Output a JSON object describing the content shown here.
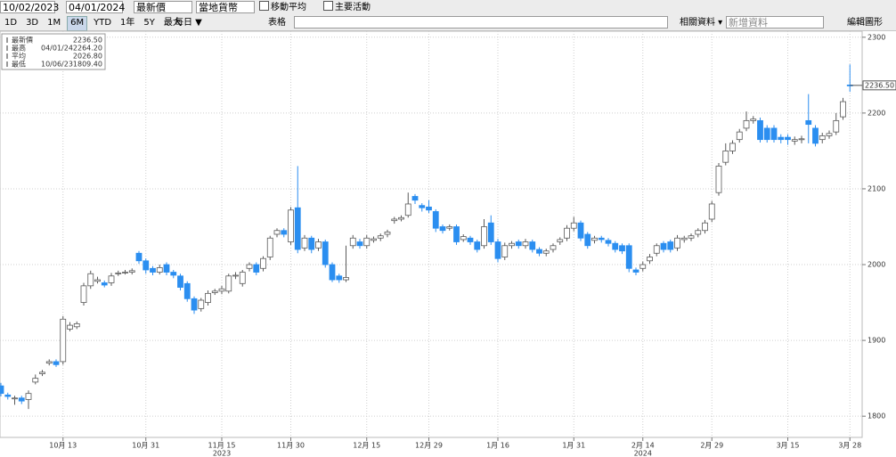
{
  "toolbar": {
    "start_date": "10/02/2023",
    "end_date": "04/01/2024",
    "price_field": "最新價",
    "currency": "當地貨幣",
    "moving_average": "移動平均",
    "key_events": "主要活動",
    "ranges": [
      "1D",
      "3D",
      "1M",
      "6M",
      "YTD",
      "1年",
      "5Y",
      "最大"
    ],
    "selected_range_index": 3,
    "frequency": "每日 ▼",
    "table": "表格",
    "related_data": "相關資料 ▾",
    "add_data": "新增資料",
    "edit_chart": "編輯圖形"
  },
  "chart_data": {
    "type": "candlestick",
    "categories": [
      null,
      null,
      null,
      null,
      null,
      null,
      null,
      null,
      null,
      "10月 13",
      null,
      null,
      null,
      null,
      null,
      null,
      null,
      null,
      null,
      null,
      null,
      "10月 31",
      null,
      null,
      null,
      null,
      null,
      null,
      null,
      null,
      null,
      null,
      "11月 15",
      null,
      null,
      null,
      null,
      null,
      null,
      null,
      null,
      null,
      "11月 30",
      null,
      null,
      null,
      null,
      null,
      null,
      null,
      null,
      null,
      null,
      "12月 15",
      null,
      null,
      null,
      null,
      null,
      null,
      null,
      null,
      "12月 29",
      null,
      null,
      null,
      null,
      null,
      null,
      null,
      null,
      null,
      "1月 16",
      null,
      null,
      null,
      null,
      null,
      null,
      null,
      null,
      null,
      null,
      "1月 31",
      null,
      null,
      null,
      null,
      null,
      null,
      null,
      null,
      null,
      "2月 14",
      null,
      null,
      null,
      null,
      null,
      null,
      null,
      null,
      null,
      "2月 29",
      null,
      null,
      null,
      null,
      null,
      null,
      null,
      null,
      null,
      null,
      "3月 15",
      null,
      null,
      null,
      null,
      null,
      null,
      null,
      null,
      "3月 28"
    ],
    "category_years": [
      null,
      null,
      null,
      null,
      null,
      null,
      null,
      null,
      null,
      null,
      null,
      null,
      null,
      null,
      null,
      null,
      null,
      null,
      null,
      null,
      null,
      null,
      null,
      null,
      null,
      null,
      null,
      null,
      null,
      null,
      null,
      null,
      "2023",
      null,
      null,
      null,
      null,
      null,
      null,
      null,
      null,
      null,
      null,
      null,
      null,
      null,
      null,
      null,
      null,
      null,
      null,
      null,
      null,
      null,
      null,
      null,
      null,
      null,
      null,
      null,
      null,
      null,
      null,
      null,
      null,
      null,
      null,
      null,
      null,
      null,
      null,
      null,
      null,
      null,
      null,
      null,
      null,
      null,
      null,
      null,
      null,
      null,
      null,
      null,
      null,
      null,
      null,
      null,
      null,
      null,
      null,
      null,
      null,
      "2024",
      null,
      null,
      null,
      null,
      null,
      null,
      null,
      null,
      null,
      null,
      null,
      null,
      null,
      null,
      null,
      null,
      null,
      null,
      null,
      null,
      null,
      null,
      null,
      null,
      null,
      null,
      null,
      null,
      null,
      null
    ],
    "open": [
      1840,
      1828,
      1823,
      1824,
      1822,
      1845,
      1856,
      1870,
      1872,
      1872,
      1915,
      1918,
      1950,
      1972,
      1978,
      1976,
      1976,
      1988,
      1990,
      1990,
      2015,
      2005,
      1995,
      1990,
      2000,
      1990,
      1985,
      1975,
      1955,
      1942,
      1950,
      1963,
      1965,
      1965,
      1985,
      1975,
      1995,
      2000,
      1995,
      2010,
      2040,
      2045,
      2030,
      2075,
      2022,
      2035,
      2022,
      2030,
      2000,
      1985,
      1980,
      2025,
      2030,
      2025,
      2032,
      2035,
      2040,
      2058,
      2060,
      2065,
      2090,
      2078,
      2076,
      2070,
      2050,
      2048,
      2050,
      2033,
      2035,
      2030,
      2025,
      2055,
      2030,
      2010,
      2025,
      2030,
      2025,
      2030,
      2020,
      2015,
      2020,
      2030,
      2035,
      2048,
      2055,
      2040,
      2032,
      2035,
      2032,
      2028,
      2025,
      2025,
      1993,
      1995,
      2005,
      2015,
      2028,
      2030,
      2022,
      2033,
      2035,
      2040,
      2045,
      2060,
      2095,
      2135,
      2150,
      2165,
      2180,
      2190,
      2190,
      2180,
      2180,
      2168,
      2168,
      2163,
      2165,
      2190,
      2180,
      2165,
      2170,
      2175,
      2195,
      2237
    ],
    "high": [
      1844,
      1831,
      1827,
      1827,
      1834,
      1855,
      1861,
      1875,
      1875,
      1932,
      1924,
      1925,
      1976,
      1992,
      1984,
      1979,
      1989,
      1992,
      1993,
      1995,
      2018,
      2008,
      1998,
      2000,
      2003,
      1993,
      1988,
      1978,
      1958,
      1956,
      1966,
      1968,
      1972,
      1988,
      1990,
      1993,
      2003,
      2003,
      2011,
      2038,
      2048,
      2048,
      2076,
      2130,
      2039,
      2038,
      2034,
      2033,
      2003,
      1988,
      2025,
      2039,
      2034,
      2039,
      2037,
      2041,
      2046,
      2063,
      2065,
      2095,
      2093,
      2081,
      2085,
      2073,
      2053,
      2053,
      2053,
      2040,
      2038,
      2033,
      2060,
      2065,
      2034,
      2029,
      2031,
      2033,
      2034,
      2033,
      2023,
      2021,
      2028,
      2036,
      2052,
      2063,
      2058,
      2043,
      2038,
      2038,
      2035,
      2031,
      2028,
      2028,
      1996,
      2004,
      2014,
      2028,
      2031,
      2033,
      2039,
      2038,
      2041,
      2048,
      2059,
      2084,
      2134,
      2160,
      2164,
      2179,
      2202,
      2196,
      2194,
      2184,
      2184,
      2172,
      2172,
      2169,
      2170,
      2225,
      2184,
      2174,
      2177,
      2200,
      2220,
      2264.2
    ],
    "low": [
      1826,
      1822,
      1815,
      1816,
      1809.4,
      1842,
      1853,
      1867,
      1865,
      1868,
      1912,
      1915,
      1946,
      1968,
      1975,
      1970,
      1972,
      1985,
      1987,
      1987,
      2001,
      1988,
      1986,
      1987,
      1986,
      1982,
      1966,
      1951,
      1935,
      1938,
      1946,
      1960,
      1961,
      1962,
      1981,
      1971,
      1991,
      1986,
      1991,
      2006,
      2036,
      2036,
      2026,
      2015,
      2018,
      2015,
      2018,
      1996,
      1977,
      1976,
      1977,
      2021,
      2021,
      2021,
      2029,
      2031,
      2036,
      2054,
      2057,
      2062,
      2080,
      2070,
      2068,
      2043,
      2041,
      2045,
      2026,
      2030,
      2026,
      2016,
      2021,
      2026,
      2003,
      2006,
      2021,
      2021,
      2021,
      2016,
      2011,
      2011,
      2016,
      2026,
      2031,
      2044,
      2031,
      2021,
      2028,
      2029,
      2024,
      2016,
      2014,
      1990,
      1986,
      1991,
      2001,
      2011,
      2016,
      2016,
      2018,
      2029,
      2031,
      2036,
      2041,
      2056,
      2091,
      2131,
      2146,
      2161,
      2176,
      2186,
      2161,
      2161,
      2161,
      2160,
      2158,
      2158,
      2160,
      2160,
      2156,
      2160,
      2166,
      2171,
      2191,
      2228
    ],
    "close": [
      1830,
      1826,
      1824,
      1820,
      1830,
      1850,
      1858,
      1872,
      1868,
      1928,
      1920,
      1922,
      1972,
      1988,
      1980,
      1973,
      1985,
      1989,
      1990,
      1992,
      2005,
      1993,
      1990,
      1996,
      1990,
      1986,
      1970,
      1955,
      1940,
      1953,
      1962,
      1965,
      1968,
      1985,
      1986,
      1990,
      2000,
      1990,
      2008,
      2035,
      2045,
      2040,
      2072,
      2020,
      2035,
      2020,
      2030,
      2000,
      1980,
      1980,
      1983,
      2035,
      2025,
      2035,
      2034,
      2038,
      2043,
      2060,
      2062,
      2080,
      2085,
      2075,
      2072,
      2048,
      2045,
      2050,
      2030,
      2037,
      2030,
      2020,
      2050,
      2030,
      2008,
      2025,
      2028,
      2025,
      2030,
      2020,
      2015,
      2018,
      2025,
      2033,
      2048,
      2055,
      2035,
      2025,
      2035,
      2033,
      2028,
      2020,
      2018,
      1995,
      1990,
      2000,
      2010,
      2025,
      2020,
      2020,
      2035,
      2035,
      2038,
      2045,
      2055,
      2080,
      2130,
      2150,
      2160,
      2175,
      2190,
      2192,
      2165,
      2165,
      2165,
      2165,
      2165,
      2165,
      2166,
      2185,
      2160,
      2170,
      2173,
      2190,
      2215,
      2236.5
    ],
    "up_color": "#ffffff",
    "up_edge_color": "#5a5a5a",
    "down_color": "#2b8ef0",
    "ylim": [
      1772,
      2308
    ],
    "yticks": [
      1800,
      1900,
      2000,
      2100,
      2200,
      2300
    ],
    "grid": true,
    "last_price": {
      "value": 2236.5,
      "label": "2236.50"
    },
    "legend": [
      {
        "name": "最新價",
        "value": {
          "value": 2236.5,
          "label": "2236.50"
        }
      },
      {
        "name": "最高",
        "date": "04/01/24",
        "value": {
          "value": 2264.2,
          "label": "2264.20"
        }
      },
      {
        "name": "平均",
        "value": {
          "value": 2026.8,
          "label": "2026.80"
        }
      },
      {
        "name": "最低",
        "date": "10/06/23",
        "value": {
          "value": 1809.4,
          "label": "1809.40"
        }
      }
    ]
  }
}
